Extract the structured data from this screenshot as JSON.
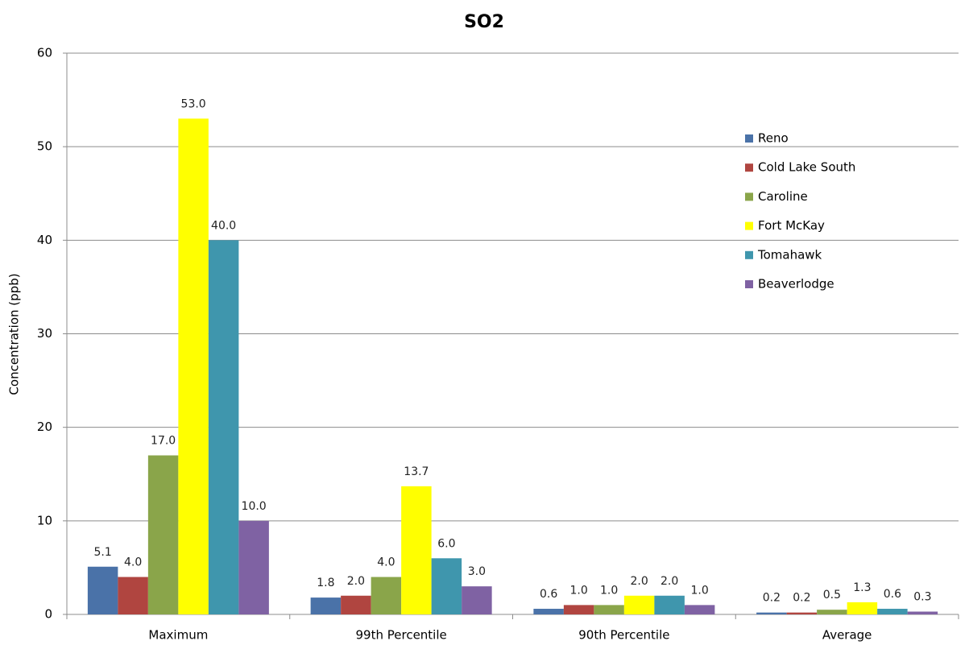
{
  "chart_data": {
    "type": "bar",
    "title": "SO2",
    "y_label": "Concentration (ppb)",
    "categories": [
      "Maximum",
      "99th Percentile",
      "90th Percentile",
      "Average"
    ],
    "series": [
      {
        "name": "Reno",
        "color": "#4a72a8",
        "values": [
          5.1,
          1.8,
          0.6,
          0.2
        ],
        "value_labels": [
          "5.1",
          "1.8",
          "0.6",
          "0.2"
        ]
      },
      {
        "name": "Cold Lake South",
        "color": "#b04540",
        "values": [
          4,
          2,
          1,
          0.2
        ],
        "value_labels": [
          "4.0",
          "2.0",
          "1.0",
          "0.2"
        ]
      },
      {
        "name": "Caroline",
        "color": "#8aa54a",
        "values": [
          17,
          4,
          1,
          0.5
        ],
        "value_labels": [
          "17.0",
          "4.0",
          "1.0",
          "0.5"
        ]
      },
      {
        "name": "Fort McKay",
        "color": "#ffff00",
        "values": [
          53,
          13.7,
          2,
          1.3
        ],
        "value_labels": [
          "53.0",
          "13.7",
          "2.0",
          "1.3"
        ]
      },
      {
        "name": "Tomahawk",
        "color": "#3f96ad",
        "values": [
          40,
          6,
          2,
          0.6
        ],
        "value_labels": [
          "40.0",
          "6.0",
          "2.0",
          "0.6"
        ]
      },
      {
        "name": "Beaverlodge",
        "color": "#7f62a3",
        "values": [
          10,
          3,
          1,
          0.3
        ],
        "value_labels": [
          "10.0",
          "3.0",
          "1.0",
          "0.3"
        ]
      }
    ],
    "ylim": [
      0,
      60
    ],
    "yticks": [
      0,
      10,
      20,
      30,
      40,
      50,
      60
    ],
    "grid": true,
    "legend": "right"
  }
}
